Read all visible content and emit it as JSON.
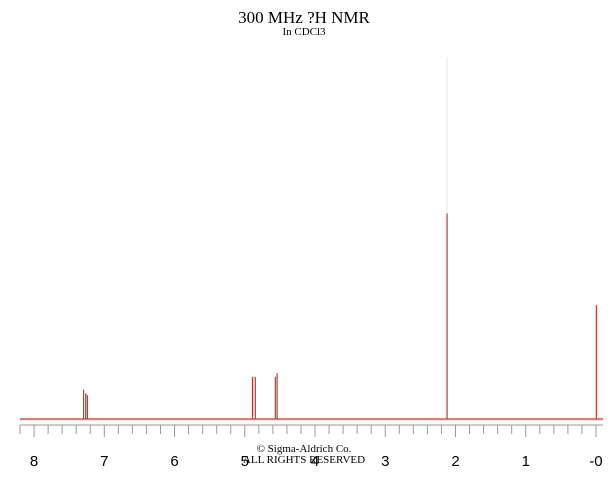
{
  "chart_data": {
    "type": "line",
    "title": "300 MHz ?H NMR",
    "subtitle": "In CDCl3",
    "xlabel": "",
    "ylabel": "",
    "x_reversed": true,
    "xlim": [
      8.2,
      -0.1
    ],
    "ylim": [
      0,
      1
    ],
    "tick_labels": [
      "8",
      "7",
      "6",
      "5",
      "4",
      "3",
      "2",
      "1",
      "-0"
    ],
    "tick_values": [
      8,
      7,
      6,
      5,
      4,
      3,
      2,
      1,
      0
    ],
    "minor_tick_step": 0.2,
    "grid": false,
    "line_color": "#c0392b",
    "axis_color": "#999999",
    "peaks": [
      {
        "ppm": 7.295,
        "height": 0.08
      },
      {
        "ppm": 7.265,
        "height": 0.07
      },
      {
        "ppm": 7.24,
        "height": 0.065
      },
      {
        "ppm": 4.89,
        "height": 0.115
      },
      {
        "ppm": 4.85,
        "height": 0.115
      },
      {
        "ppm": 4.565,
        "height": 0.115
      },
      {
        "ppm": 4.54,
        "height": 0.125
      },
      {
        "ppm": 2.12,
        "height": 0.56
      },
      {
        "ppm": -0.005,
        "height": 0.31
      }
    ],
    "reference_line_ppm": 2.12,
    "credit_line1": "© Sigma-Aldrich Co.",
    "credit_line2": "ALL RIGHTS RESERVED"
  }
}
